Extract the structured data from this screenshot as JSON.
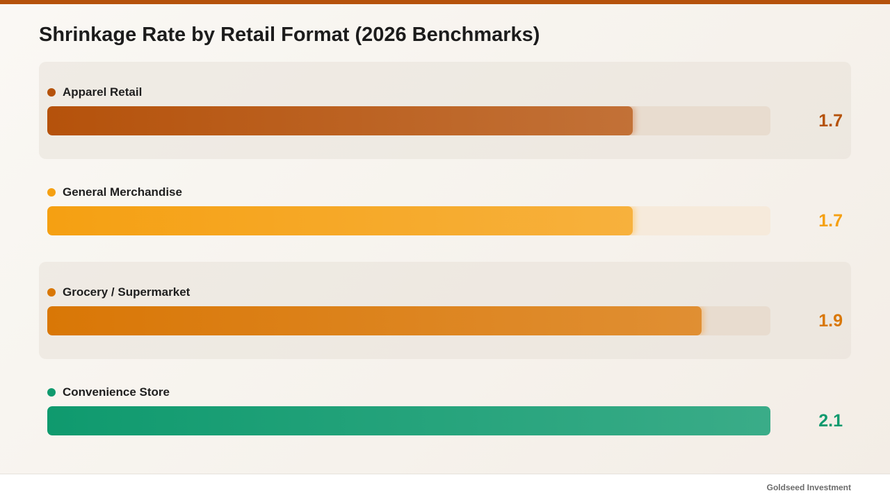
{
  "chart_data": {
    "type": "bar",
    "orientation": "horizontal",
    "title": "Shrinkage Rate by Retail Format (2026 Benchmarks)",
    "categories": [
      "Apparel Retail",
      "General Merchandise",
      "Grocery / Supermarket",
      "Convenience Store"
    ],
    "values": [
      1.7,
      1.7,
      1.9,
      2.1
    ],
    "value_labels": [
      "1.7",
      "1.7",
      "1.9",
      "2.1"
    ],
    "xlim": [
      0,
      2.1
    ],
    "colors": [
      "#b5520b",
      "#f5a012",
      "#d97706",
      "#0f9a6e"
    ],
    "track_colors": [
      "#e8dccf",
      "#f6eadb",
      "#e8dccf",
      "#dfeee7"
    ],
    "shaded_rows": [
      true,
      false,
      true,
      false
    ],
    "grid": false,
    "legend": "none"
  },
  "footer": {
    "brand": "Goldseed Investment"
  },
  "colors": {
    "accent_rule": "#b5520b",
    "title_text": "#1c1c1c"
  }
}
